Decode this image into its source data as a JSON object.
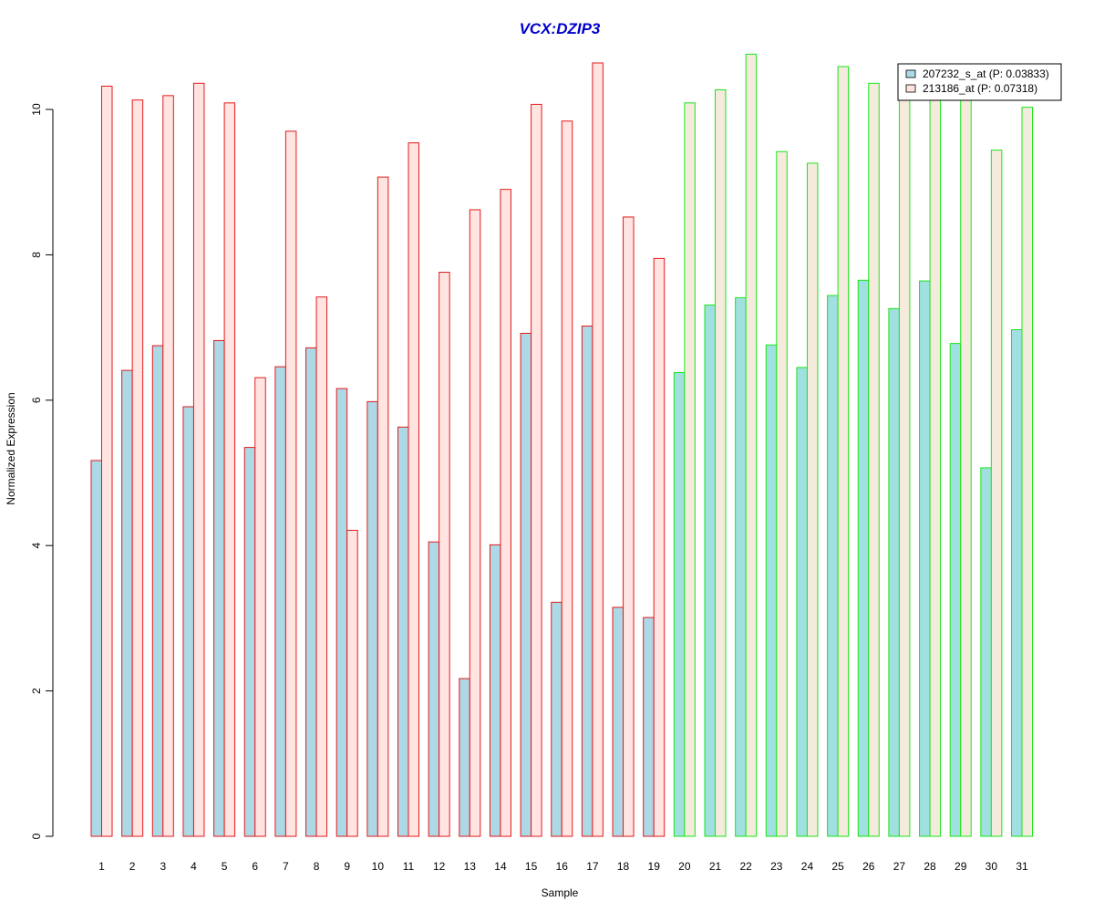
{
  "chart_data": {
    "type": "bar",
    "title": "VCX:DZIP3",
    "xlabel": "Sample",
    "ylabel": "Normalized Expression",
    "ylim": [
      0,
      10.8
    ],
    "y_ticks": [
      "0",
      "2",
      "4",
      "6",
      "8",
      "10"
    ],
    "categories": [
      "1",
      "2",
      "3",
      "4",
      "5",
      "6",
      "7",
      "8",
      "9",
      "10",
      "11",
      "12",
      "13",
      "14",
      "15",
      "16",
      "17",
      "18",
      "19",
      "20",
      "21",
      "22",
      "23",
      "24",
      "25",
      "26",
      "27",
      "28",
      "29",
      "30",
      "31"
    ],
    "series": [
      {
        "name": "207232_s_at (P: 0.03833)",
        "values": [
          5.17,
          6.41,
          6.75,
          5.91,
          6.82,
          5.35,
          6.46,
          6.72,
          6.16,
          5.98,
          5.63,
          4.05,
          2.17,
          4.01,
          6.92,
          3.22,
          7.02,
          3.15,
          3.01,
          6.38,
          7.31,
          7.41,
          6.76,
          6.45,
          7.44,
          7.65,
          7.26,
          7.64,
          6.78,
          5.07,
          6.97
        ]
      },
      {
        "name": "213186_at (P: 0.07318)",
        "values": [
          10.32,
          10.13,
          10.19,
          10.36,
          10.09,
          6.31,
          9.7,
          7.42,
          4.21,
          9.07,
          9.54,
          7.76,
          8.62,
          8.9,
          10.07,
          9.84,
          10.64,
          8.52,
          7.95,
          10.09,
          10.27,
          10.76,
          9.42,
          9.26,
          10.59,
          10.36,
          10.33,
          10.3,
          10.24,
          9.44,
          10.03
        ]
      }
    ],
    "groups": [
      {
        "first": 1,
        "last": 19,
        "border_color": "#e31a1c",
        "fill_a": "#add8e6",
        "fill_b": "#ffe4e1"
      },
      {
        "first": 20,
        "last": 31,
        "border_color": "#19e619",
        "fill_a": "#a0e0e0",
        "fill_b": "#f5ebdc"
      }
    ],
    "legend_position": "top-right",
    "grid": false,
    "colors": {
      "title": "#0000cc",
      "legend_swatch_a": "#add8e6",
      "legend_swatch_b": "#ffe4e1"
    }
  }
}
